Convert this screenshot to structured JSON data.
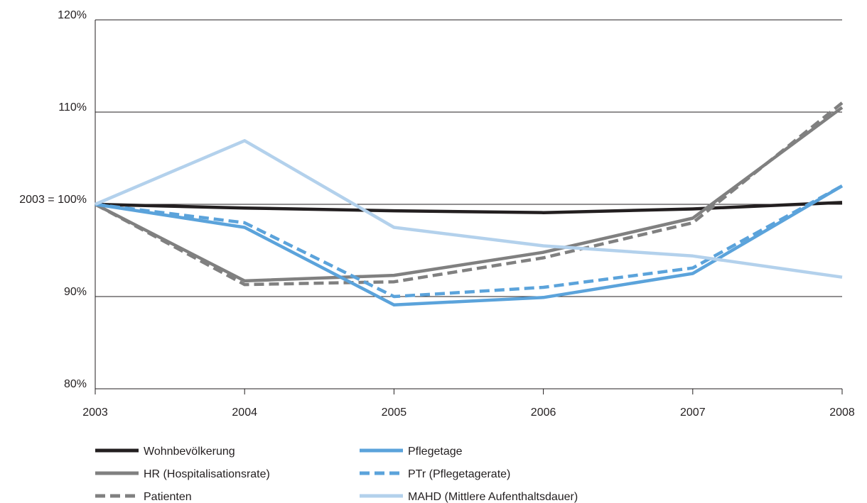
{
  "chart_data": {
    "type": "line",
    "categories": [
      "2003",
      "2004",
      "2005",
      "2006",
      "2007",
      "2008"
    ],
    "ylim": [
      80,
      120
    ],
    "y_ticks": [
      {
        "value": 120,
        "label": "120%"
      },
      {
        "value": 110,
        "label": "110%"
      },
      {
        "value": 100,
        "label": "2003 = 100%"
      },
      {
        "value": 90,
        "label": "90%"
      },
      {
        "value": 80,
        "label": "80%"
      }
    ],
    "grid": true,
    "legend_position": "bottom",
    "series": [
      {
        "name": "Wohnbevölkerung",
        "color": "#231f20",
        "dash": "solid",
        "values": [
          100,
          99.6,
          99.3,
          99.1,
          99.5,
          100.2
        ]
      },
      {
        "name": "HR (Hospitalisationsrate)",
        "color": "#808080",
        "dash": "solid",
        "values": [
          100,
          91.7,
          92.3,
          94.8,
          98.5,
          110.5
        ]
      },
      {
        "name": "Patienten",
        "color": "#808080",
        "dash": "dashed",
        "values": [
          100,
          91.3,
          91.6,
          94.2,
          98.0,
          111.0
        ]
      },
      {
        "name": "Pflegetage",
        "color": "#5ba3db",
        "dash": "solid",
        "values": [
          100,
          97.5,
          89.1,
          89.9,
          92.5,
          102.0
        ]
      },
      {
        "name": "PTr (Pflegetagerate)",
        "color": "#5ba3db",
        "dash": "dashed",
        "values": [
          100,
          98.0,
          90.0,
          91.0,
          93.1,
          102.0
        ]
      },
      {
        "name": "MAHD (Mittlere Aufenthaltsdauer)",
        "color": "#b3d1ec",
        "dash": "solid",
        "values": [
          100,
          106.9,
          97.5,
          95.5,
          94.4,
          92.1
        ]
      }
    ]
  }
}
